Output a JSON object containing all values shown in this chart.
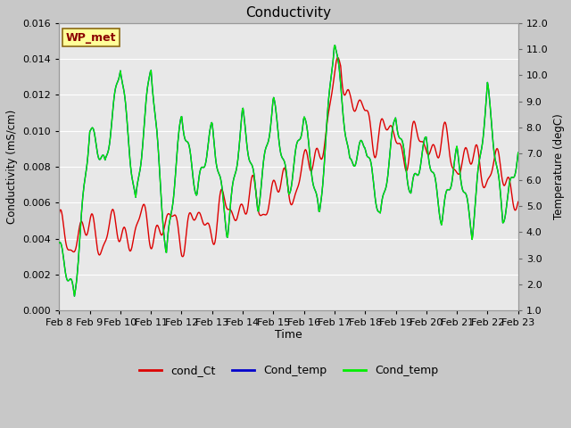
{
  "title": "Conductivity",
  "xlabel": "Time",
  "ylabel_left": "Conductivity (mS/cm)",
  "ylabel_right": "Temperature (degC)",
  "annotation": "WP_met",
  "ylim_left": [
    0.0,
    0.016
  ],
  "ylim_right": [
    1.0,
    12.0
  ],
  "yticks_left": [
    0.0,
    0.002,
    0.004,
    0.006,
    0.008,
    0.01,
    0.012,
    0.014,
    0.016
  ],
  "yticks_right": [
    1.0,
    2.0,
    3.0,
    4.0,
    5.0,
    6.0,
    7.0,
    8.0,
    9.0,
    10.0,
    11.0,
    12.0
  ],
  "xtick_labels": [
    "Feb 8",
    "Feb 9",
    "Feb 10",
    "Feb 11",
    "Feb 12",
    "Feb 13",
    "Feb 14",
    "Feb 15",
    "Feb 16",
    "Feb 17",
    "Feb 18",
    "Feb 19",
    "Feb 20",
    "Feb 21",
    "Feb 22",
    "Feb 23"
  ],
  "plot_bg_color": "#e8e8e8",
  "fig_bg_color": "#c8c8c8",
  "grid_color": "#ffffff",
  "line_red_color": "#dd0000",
  "line_green_color": "#00ee00",
  "line_blue_color": "#0000cc",
  "legend_entries": [
    "cond_Ct",
    "Cond_temp",
    "Cond_temp"
  ],
  "legend_colors": [
    "#dd0000",
    "#0000cc",
    "#00ee00"
  ]
}
